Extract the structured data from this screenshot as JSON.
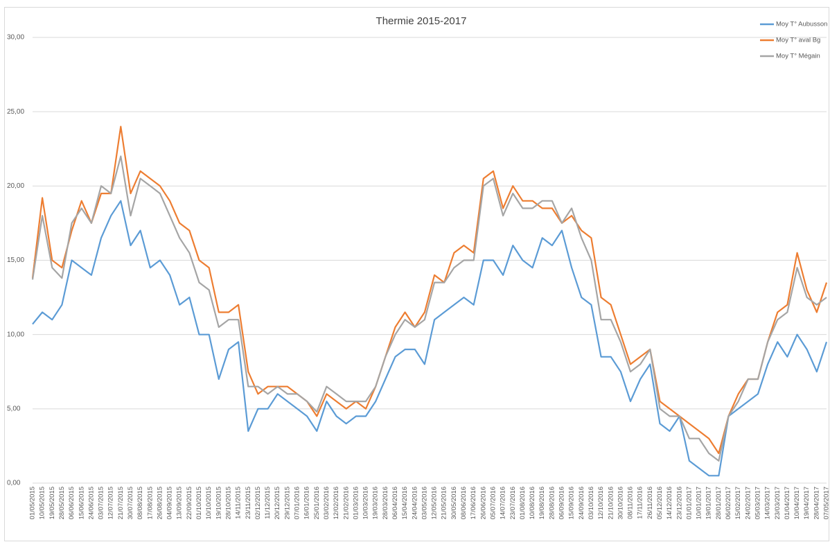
{
  "chart_data": {
    "type": "line",
    "title": "Thermie 2015-2017",
    "categories": [
      "01/05/2015",
      "10/05/2015",
      "19/05/2015",
      "28/05/2015",
      "06/06/2015",
      "15/06/2015",
      "24/06/2015",
      "03/07/2015",
      "12/07/2015",
      "21/07/2015",
      "30/07/2015",
      "08/08/2015",
      "17/08/2015",
      "26/08/2015",
      "04/09/2015",
      "13/09/2015",
      "22/09/2015",
      "01/10/2015",
      "10/10/2015",
      "19/10/2015",
      "28/10/2015",
      "14/11/2015",
      "23/11/2015",
      "02/12/2015",
      "11/12/2015",
      "20/12/2015",
      "29/12/2015",
      "07/01/2016",
      "16/01/2016",
      "25/01/2016",
      "03/02/2016",
      "12/02/2016",
      "21/02/2016",
      "01/03/2016",
      "10/03/2016",
      "19/03/2016",
      "28/03/2016",
      "06/04/2016",
      "15/04/2016",
      "24/04/2016",
      "03/05/2016",
      "12/05/2016",
      "21/05/2016",
      "30/05/2016",
      "08/06/2016",
      "17/06/2016",
      "26/06/2016",
      "05/07/2016",
      "14/07/2016",
      "23/07/2016",
      "01/08/2016",
      "10/08/2016",
      "19/08/2016",
      "28/08/2016",
      "06/09/2016",
      "15/09/2016",
      "24/09/2016",
      "03/10/2016",
      "12/10/2016",
      "21/10/2016",
      "30/10/2016",
      "08/11/2016",
      "17/11/2016",
      "26/11/2016",
      "05/12/2016",
      "14/12/2016",
      "23/12/2016",
      "01/01/2017",
      "10/01/2017",
      "19/01/2017",
      "28/01/2017",
      "06/02/2017",
      "15/02/2017",
      "24/02/2017",
      "05/03/2017",
      "14/03/2017",
      "23/03/2017",
      "01/04/2017",
      "10/04/2017",
      "19/04/2017",
      "28/04/2017",
      "07/05/2017"
    ],
    "series": [
      {
        "name": "Moy T° Aubusson",
        "color": "#5b9bd5",
        "values": [
          10.7,
          11.5,
          11.0,
          12.0,
          15.0,
          14.5,
          14.0,
          16.5,
          18.0,
          19.0,
          16.0,
          17.0,
          14.5,
          15.0,
          14.0,
          12.0,
          12.5,
          10.0,
          10.0,
          7.0,
          9.0,
          9.5,
          3.5,
          5.0,
          5.0,
          6.0,
          5.5,
          5.0,
          4.5,
          3.5,
          5.5,
          4.5,
          4.0,
          4.5,
          4.5,
          5.5,
          7.0,
          8.5,
          9.0,
          9.0,
          8.0,
          11.0,
          11.5,
          12.0,
          12.5,
          12.0,
          15.0,
          15.0,
          14.0,
          16.0,
          15.0,
          14.5,
          16.5,
          16.0,
          17.0,
          14.5,
          12.5,
          12.0,
          8.5,
          8.5,
          7.5,
          5.5,
          7.0,
          8.0,
          4.0,
          3.5,
          4.5,
          1.5,
          1.0,
          0.5,
          0.5,
          4.5,
          5.0,
          5.5,
          6.0,
          8.0,
          9.5,
          8.5,
          10.0,
          9.0,
          7.5,
          9.5
        ]
      },
      {
        "name": "Moy T° aval Bg",
        "color": "#ed7d31",
        "values": [
          13.8,
          19.2,
          15.0,
          14.5,
          17.0,
          19.0,
          17.5,
          19.5,
          19.5,
          24.0,
          19.5,
          21.0,
          20.5,
          20.0,
          19.0,
          17.5,
          17.0,
          15.0,
          14.5,
          11.5,
          11.5,
          12.0,
          7.5,
          6.0,
          6.5,
          6.5,
          6.5,
          6.0,
          5.5,
          4.5,
          6.0,
          5.5,
          5.0,
          5.5,
          5.0,
          6.5,
          8.5,
          10.5,
          11.5,
          10.5,
          11.5,
          14.0,
          13.5,
          15.5,
          16.0,
          15.5,
          20.5,
          21.0,
          18.5,
          20.0,
          19.0,
          19.0,
          18.5,
          18.5,
          17.5,
          18.0,
          17.0,
          16.5,
          12.5,
          12.0,
          10.0,
          8.0,
          8.5,
          9.0,
          5.5,
          5.0,
          4.5,
          4.0,
          3.5,
          3.0,
          2.0,
          4.5,
          6.0,
          7.0,
          7.0,
          9.5,
          11.5,
          12.0,
          15.5,
          13.0,
          11.5,
          13.5
        ]
      },
      {
        "name": "Moy T° Mégain",
        "color": "#a5a5a5",
        "values": [
          13.7,
          18.0,
          14.5,
          13.8,
          17.5,
          18.5,
          17.5,
          20.0,
          19.5,
          22.0,
          18.0,
          20.5,
          20.0,
          19.5,
          18.0,
          16.5,
          15.5,
          13.5,
          13.0,
          10.5,
          11.0,
          11.0,
          6.5,
          6.5,
          6.0,
          6.5,
          6.0,
          6.0,
          5.5,
          4.8,
          6.5,
          6.0,
          5.5,
          5.5,
          5.5,
          6.5,
          8.5,
          10.0,
          11.0,
          10.5,
          11.0,
          13.5,
          13.5,
          14.5,
          15.0,
          15.0,
          20.0,
          20.5,
          18.0,
          19.5,
          18.5,
          18.5,
          19.0,
          19.0,
          17.5,
          18.5,
          16.5,
          15.0,
          11.0,
          11.0,
          9.5,
          7.5,
          8.0,
          9.0,
          5.0,
          4.5,
          4.5,
          3.0,
          3.0,
          2.0,
          1.5,
          4.5,
          5.5,
          7.0,
          7.0,
          9.5,
          11.0,
          11.5,
          14.5,
          12.5,
          12.0,
          12.5
        ]
      }
    ],
    "ylim": [
      0,
      30
    ],
    "yticks": [
      {
        "value": 0,
        "label": "0,00"
      },
      {
        "value": 5,
        "label": "5,00"
      },
      {
        "value": 10,
        "label": "10,00"
      },
      {
        "value": 15,
        "label": "15,00"
      },
      {
        "value": 20,
        "label": "20,00"
      },
      {
        "value": 25,
        "label": "25,00"
      },
      {
        "value": 30,
        "label": "30,00"
      }
    ],
    "grid": true,
    "legend": "top-right"
  }
}
